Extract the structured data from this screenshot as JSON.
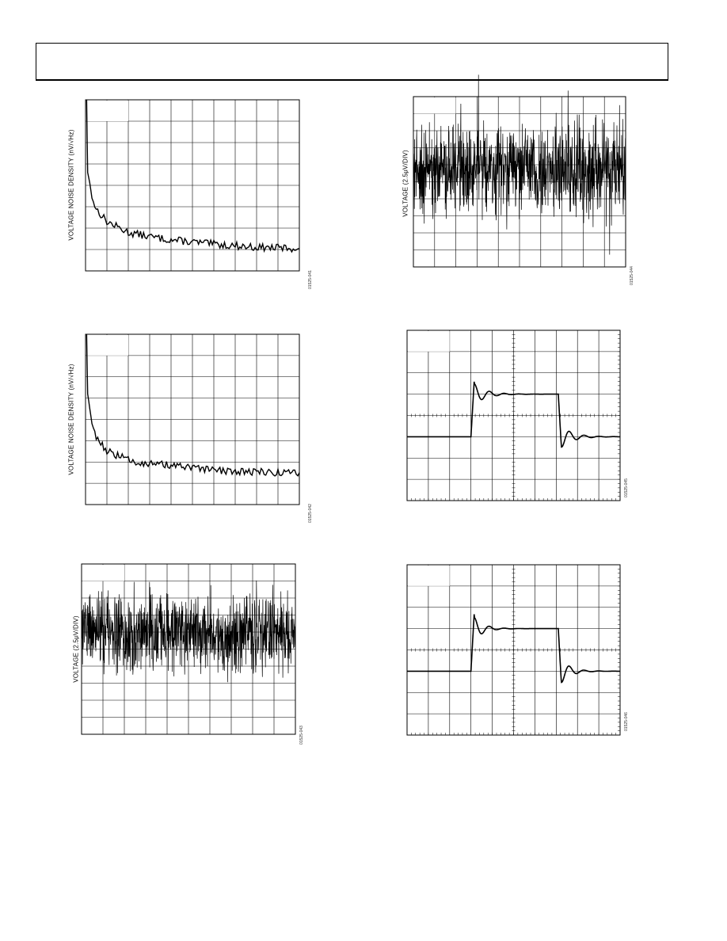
{
  "header": {
    "title": ""
  },
  "chart_data": [
    {
      "id": "c1",
      "type": "line",
      "ylabel": "VOLTAGE NOISE DENSITY (nV/√Hz)",
      "figure_id": "01525-041",
      "grid": "10x8",
      "trace": "noise-density",
      "xlim": [
        0,
        10
      ],
      "ylim": [
        0,
        8
      ],
      "series": [
        {
          "x": [
            0.05,
            0.1,
            0.2,
            0.3,
            0.5,
            1,
            2,
            3,
            4,
            5,
            6,
            7,
            8,
            9,
            10
          ],
          "values": [
            8.0,
            4.6,
            4.1,
            3.4,
            2.9,
            2.3,
            1.8,
            1.6,
            1.45,
            1.35,
            1.25,
            1.18,
            1.1,
            1.08,
            1.05
          ]
        }
      ]
    },
    {
      "id": "c2",
      "type": "line",
      "ylabel": "VOLTAGE NOISE DENSITY (nV/√Hz)",
      "figure_id": "01525-042",
      "grid": "10x8",
      "trace": "noise-density",
      "xlim": [
        0,
        10
      ],
      "ylim": [
        0,
        8
      ],
      "series": [
        {
          "x": [
            0.05,
            0.1,
            0.2,
            0.3,
            0.5,
            1,
            2,
            3,
            4,
            5,
            6,
            7,
            8,
            9,
            10
          ],
          "values": [
            8.0,
            5.2,
            4.5,
            3.8,
            3.2,
            2.5,
            2.1,
            1.9,
            1.85,
            1.7,
            1.6,
            1.55,
            1.55,
            1.5,
            1.5
          ]
        }
      ]
    },
    {
      "id": "c3",
      "type": "line",
      "ylabel": "VOLTAGE (2.5μV/DIV)",
      "figure_id": "01525-043",
      "grid": "10x10",
      "trace": "time-noise",
      "xlim": [
        0,
        10
      ],
      "ylim": [
        -5,
        5
      ],
      "series": [
        {
          "description_values": [],
          "center": 1.0,
          "amplitude": 1.1
        }
      ]
    },
    {
      "id": "c4",
      "type": "line",
      "ylabel": "VOLTAGE (2.5μV/DIV)",
      "figure_id": "01525-044",
      "grid": "10x10",
      "trace": "time-noise",
      "xlim": [
        0,
        10
      ],
      "ylim": [
        -5,
        5
      ],
      "series": [
        {
          "description_values": [],
          "center": 0.7,
          "amplitude": 1.3
        }
      ]
    },
    {
      "id": "c5",
      "type": "line",
      "ylabel": "",
      "figure_id": "01525-045",
      "grid": "10x8",
      "trace": "step",
      "xlim": [
        0,
        10
      ],
      "ylim": [
        -4,
        4
      ],
      "series": [
        {
          "low": -1.0,
          "high": 1.0,
          "rise_at": 3.0,
          "fall_at": 7.1,
          "overshoot": 0.65,
          "decay": 0.55
        }
      ]
    },
    {
      "id": "c6",
      "type": "line",
      "ylabel": "",
      "figure_id": "01525-046",
      "grid": "10x8",
      "trace": "step",
      "xlim": [
        0,
        10
      ],
      "ylim": [
        -4,
        4
      ],
      "series": [
        {
          "low": -1.0,
          "high": 1.0,
          "rise_at": 3.0,
          "fall_at": 7.1,
          "overshoot": 0.75,
          "decay": 0.45
        }
      ]
    }
  ]
}
